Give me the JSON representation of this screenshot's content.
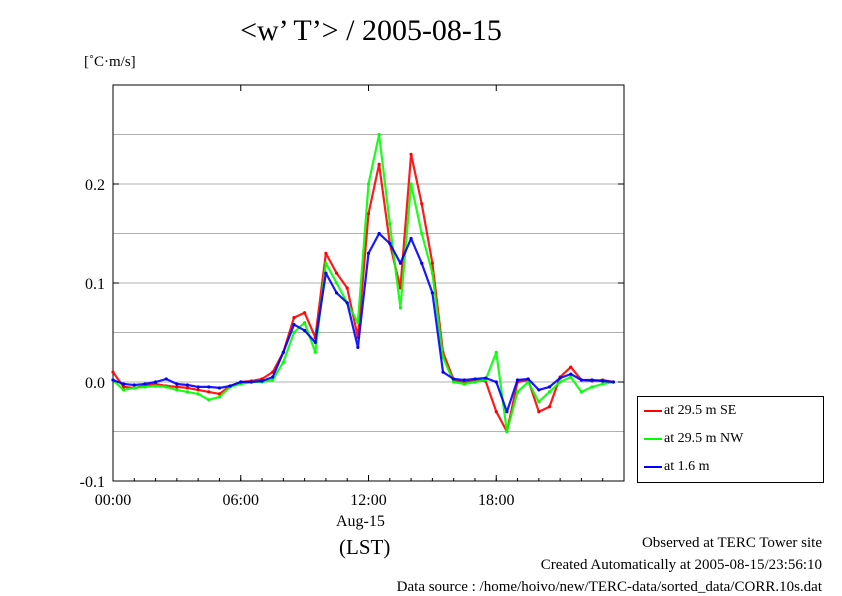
{
  "chart_data": {
    "type": "line",
    "title": "<w’ T’> / 2005-08-15",
    "ylabel": "[˚C·m/s]",
    "xlabel": "",
    "x_date_label": "Aug-15",
    "x_timezone_label": "(LST)",
    "xlim_hours": [
      0,
      24
    ],
    "ylim": [
      -0.1,
      0.3
    ],
    "x_tick_labels": [
      "00:00",
      "06:00",
      "12:00",
      "18:00"
    ],
    "x_ticks_hours": [
      0,
      6,
      12,
      18
    ],
    "y_ticks": [
      -0.1,
      0.0,
      0.1,
      0.2
    ],
    "y_tick_labels": [
      "-0.1",
      "0.0",
      "0.1",
      "0.2"
    ],
    "grid_y": [
      -0.05,
      0.05,
      0.15,
      0.25
    ],
    "legend_placement": "outside-right-bottom",
    "x": [
      0,
      0.5,
      1,
      1.5,
      2,
      2.5,
      3,
      3.5,
      4,
      4.5,
      5,
      5.5,
      6,
      6.5,
      7,
      7.5,
      8,
      8.5,
      9,
      9.5,
      10,
      10.5,
      11,
      11.5,
      12,
      12.5,
      13,
      13.5,
      14,
      14.5,
      15,
      15.5,
      16,
      16.5,
      17,
      17.5,
      18,
      18.5,
      19,
      19.5,
      20,
      20.5,
      21,
      21.5,
      22,
      22.5,
      23,
      23.5
    ],
    "series": [
      {
        "name": "at 29.5 m SE",
        "color": "#ff0000",
        "values": [
          0.01,
          -0.005,
          -0.006,
          -0.004,
          -0.002,
          -0.004,
          -0.005,
          -0.006,
          -0.008,
          -0.01,
          -0.012,
          -0.004,
          0.0,
          0.001,
          0.003,
          0.01,
          0.03,
          0.065,
          0.07,
          0.045,
          0.13,
          0.11,
          0.095,
          0.045,
          0.17,
          0.22,
          0.14,
          0.095,
          0.23,
          0.18,
          0.12,
          0.03,
          0.002,
          0.0,
          0.002,
          0.001,
          -0.03,
          -0.05,
          0.0,
          0.002,
          -0.03,
          -0.025,
          0.005,
          0.015,
          0.002,
          0.001,
          0.002,
          0.0
        ]
      },
      {
        "name": "at 29.5 m NW",
        "color": "#00ff00",
        "values": [
          0.002,
          -0.008,
          -0.006,
          -0.005,
          -0.004,
          -0.005,
          -0.008,
          -0.01,
          -0.012,
          -0.018,
          -0.015,
          -0.005,
          -0.002,
          0.0,
          0.0,
          0.002,
          0.02,
          0.05,
          0.06,
          0.03,
          0.12,
          0.1,
          0.08,
          0.06,
          0.2,
          0.25,
          0.16,
          0.075,
          0.2,
          0.15,
          0.11,
          0.025,
          0.0,
          -0.002,
          0.0,
          0.002,
          0.03,
          -0.05,
          -0.01,
          0.0,
          -0.02,
          -0.01,
          0.0,
          0.005,
          -0.01,
          -0.005,
          -0.002,
          0.0
        ]
      },
      {
        "name": "at 1.6 m",
        "color": "#0000ff",
        "values": [
          0.002,
          -0.002,
          -0.003,
          -0.002,
          0.0,
          0.003,
          -0.002,
          -0.003,
          -0.005,
          -0.005,
          -0.006,
          -0.004,
          0.0,
          0.0,
          0.001,
          0.005,
          0.03,
          0.058,
          0.052,
          0.04,
          0.11,
          0.09,
          0.08,
          0.035,
          0.13,
          0.15,
          0.14,
          0.12,
          0.145,
          0.12,
          0.09,
          0.01,
          0.003,
          0.002,
          0.003,
          0.004,
          0.0,
          -0.03,
          0.002,
          0.003,
          -0.008,
          -0.005,
          0.004,
          0.008,
          0.002,
          0.002,
          0.001,
          0.0
        ]
      }
    ]
  },
  "footer": {
    "line1": "Observed at TERC Tower site",
    "line2": "Created Automatically at 2005-08-15/23:56:10",
    "line3": "Data source : /home/hoivo/new/TERC-data/sorted_data/CORR.10s.dat"
  }
}
